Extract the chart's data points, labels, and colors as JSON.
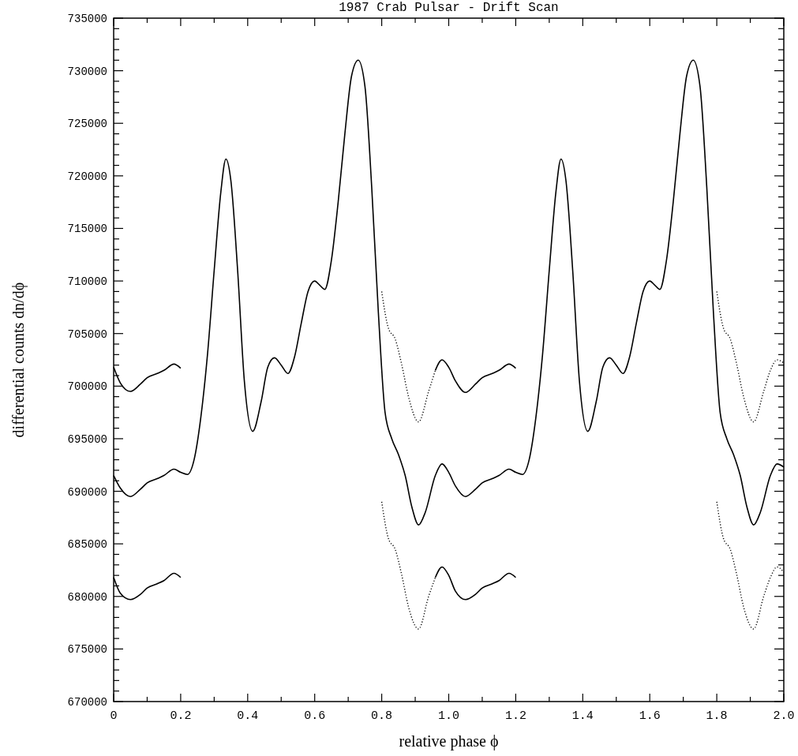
{
  "chart_data": {
    "type": "line",
    "title": "1987 Crab Pulsar - Drift Scan",
    "xlabel": "relative phase ϕ",
    "ylabel": "differential counts dn/dϕ",
    "xlim": [
      0,
      2
    ],
    "ylim": [
      670000,
      735000
    ],
    "xticks": [
      0,
      {
        "value": 0.1,
        "label": null
      },
      {
        "value": 0.2,
        "label": "0.2"
      },
      {
        "value": 0.3,
        "label": null
      },
      {
        "value": 0.4,
        "label": "0.4"
      },
      {
        "value": 0.5,
        "label": null
      },
      {
        "value": 0.6,
        "label": "0.6"
      },
      {
        "value": 0.7,
        "label": null
      },
      {
        "value": 0.8,
        "label": "0.8"
      },
      {
        "value": 0.9,
        "label": null
      },
      {
        "value": 1,
        "label": "1.0"
      },
      {
        "value": 1.1,
        "label": null
      },
      {
        "value": 1.2,
        "label": "1.2"
      },
      {
        "value": 1.3,
        "label": null
      },
      {
        "value": 1.4,
        "label": "1.4"
      },
      {
        "value": 1.5,
        "label": null
      },
      {
        "value": 1.6,
        "label": "1.6"
      },
      {
        "value": 1.7,
        "label": null
      },
      {
        "value": 1.8,
        "label": "1.8"
      },
      {
        "value": 1.9,
        "label": null
      },
      {
        "value": 2,
        "label": "2.0"
      }
    ],
    "yticks": [
      670000,
      {
        "value": 671000,
        "label": null
      },
      {
        "value": 672000,
        "label": null
      },
      {
        "value": 673000,
        "label": null
      },
      {
        "value": 674000,
        "label": null
      },
      675000,
      {
        "value": 676000,
        "label": null
      },
      {
        "value": 677000,
        "label": null
      },
      {
        "value": 678000,
        "label": null
      },
      {
        "value": 679000,
        "label": null
      },
      680000,
      {
        "value": 681000,
        "label": null
      },
      {
        "value": 682000,
        "label": null
      },
      {
        "value": 683000,
        "label": null
      },
      {
        "value": 684000,
        "label": null
      },
      685000,
      {
        "value": 686000,
        "label": null
      },
      {
        "value": 687000,
        "label": null
      },
      {
        "value": 688000,
        "label": null
      },
      {
        "value": 689000,
        "label": null
      },
      690000,
      {
        "value": 691000,
        "label": null
      },
      {
        "value": 692000,
        "label": null
      },
      {
        "value": 693000,
        "label": null
      },
      {
        "value": 694000,
        "label": null
      },
      695000,
      {
        "value": 696000,
        "label": null
      },
      {
        "value": 697000,
        "label": null
      },
      {
        "value": 698000,
        "label": null
      },
      {
        "value": 699000,
        "label": null
      },
      700000,
      {
        "value": 701000,
        "label": null
      },
      {
        "value": 702000,
        "label": null
      },
      {
        "value": 703000,
        "label": null
      },
      {
        "value": 704000,
        "label": null
      },
      705000,
      {
        "value": 706000,
        "label": null
      },
      {
        "value": 707000,
        "label": null
      },
      {
        "value": 708000,
        "label": null
      },
      {
        "value": 709000,
        "label": null
      },
      710000,
      {
        "value": 711000,
        "label": null
      },
      {
        "value": 712000,
        "label": null
      },
      {
        "value": 713000,
        "label": null
      },
      {
        "value": 714000,
        "label": null
      },
      715000,
      {
        "value": 716000,
        "label": null
      },
      {
        "value": 717000,
        "label": null
      },
      {
        "value": 718000,
        "label": null
      },
      {
        "value": 719000,
        "label": null
      },
      720000,
      {
        "value": 721000,
        "label": null
      },
      {
        "value": 722000,
        "label": null
      },
      {
        "value": 723000,
        "label": null
      },
      {
        "value": 724000,
        "label": null
      },
      725000,
      {
        "value": 726000,
        "label": null
      },
      {
        "value": 727000,
        "label": null
      },
      {
        "value": 728000,
        "label": null
      },
      {
        "value": 729000,
        "label": null
      },
      730000,
      {
        "value": 731000,
        "label": null
      },
      {
        "value": 732000,
        "label": null
      },
      {
        "value": 733000,
        "label": null
      },
      {
        "value": 734000,
        "label": null
      },
      735000
    ],
    "grid": false,
    "series": [
      {
        "color": "#000000",
        "line_style": "solid",
        "x": [
          0,
          0.02,
          0.05,
          0.08,
          0.1,
          0.13,
          0.15,
          0.18,
          0.2,
          0.22,
          0.24,
          0.26,
          0.28,
          0.3,
          0.32,
          0.335,
          0.35,
          0.37,
          0.39,
          0.415,
          0.44,
          0.46,
          0.48,
          0.5,
          0.52,
          0.54,
          0.56,
          0.58,
          0.6,
          0.615,
          0.63,
          0.65,
          0.67,
          0.69,
          0.71,
          0.73,
          0.75,
          0.77,
          0.79,
          0.81,
          0.83,
          0.85,
          0.87,
          0.89,
          0.91,
          0.93,
          0.96,
          0.98,
          1.0,
          1.02,
          1.05,
          1.08,
          1.1,
          1.13,
          1.15,
          1.18,
          1.2,
          1.22,
          1.24,
          1.26,
          1.28,
          1.3,
          1.32,
          1.335,
          1.35,
          1.37,
          1.39,
          1.415,
          1.44,
          1.46,
          1.48,
          1.5,
          1.52,
          1.54,
          1.56,
          1.58,
          1.6,
          1.615,
          1.63,
          1.65,
          1.67,
          1.69,
          1.71,
          1.73,
          1.75,
          1.77,
          1.79,
          1.81,
          1.83,
          1.85,
          1.87,
          1.89,
          1.91,
          1.93,
          1.96,
          1.98,
          2.0
        ],
        "values": [
          691500,
          690300,
          689500,
          690200,
          690800,
          691200,
          691500,
          692100,
          691800,
          691600,
          693000,
          697000,
          703000,
          711000,
          718500,
          721600,
          719500,
          711000,
          700500,
          695700,
          698500,
          701800,
          702700,
          702000,
          701200,
          702800,
          706000,
          709000,
          710000,
          709600,
          709200,
          712000,
          717500,
          724000,
          729500,
          731000,
          728500,
          719000,
          707000,
          697500,
          695000,
          693500,
          691500,
          688500,
          686800,
          688000,
          691500,
          692600,
          691800,
          690500,
          689500,
          690200,
          690800,
          691200,
          691500,
          692100,
          691800,
          691600,
          693000,
          697000,
          703000,
          711000,
          718500,
          721600,
          719500,
          711000,
          700500,
          695700,
          698500,
          701800,
          702700,
          702000,
          701200,
          702800,
          706000,
          709000,
          710000,
          709600,
          709200,
          712000,
          717500,
          724000,
          729500,
          731000,
          728500,
          719000,
          707000,
          697500,
          695000,
          693500,
          691500,
          688500,
          686800,
          688000,
          691500,
          692600,
          692300
        ]
      },
      {
        "color": "#000000",
        "line_style": "solid",
        "x": [
          0,
          0.02,
          0.05,
          0.08,
          0.1,
          0.13,
          0.15,
          0.18,
          0.2
        ],
        "values": [
          701800,
          700300,
          699500,
          700200,
          700800,
          701200,
          701500,
          702100,
          701700
        ]
      },
      {
        "color": "#000000",
        "line_style": "dotted",
        "x": [
          0.8,
          0.82,
          0.84,
          0.86,
          0.88,
          0.91,
          0.94,
          0.96
        ],
        "values": [
          709000,
          705500,
          704500,
          702000,
          699000,
          696600,
          699500,
          701500
        ]
      },
      {
        "color": "#000000",
        "line_style": "solid",
        "x": [
          0.96,
          0.98,
          1.0,
          1.02,
          1.05,
          1.08,
          1.1,
          1.13,
          1.15,
          1.18,
          1.2
        ],
        "values": [
          701500,
          702500,
          701800,
          700500,
          699400,
          700200,
          700800,
          701200,
          701500,
          702100,
          701700
        ]
      },
      {
        "color": "#000000",
        "line_style": "dotted",
        "x": [
          1.8,
          1.82,
          1.84,
          1.86,
          1.88,
          1.91,
          1.94,
          1.96,
          1.98,
          2.0
        ],
        "values": [
          709000,
          705500,
          704500,
          702000,
          699000,
          696600,
          699500,
          701500,
          702500,
          702200
        ]
      },
      {
        "color": "#000000",
        "line_style": "solid",
        "x": [
          0,
          0.02,
          0.05,
          0.08,
          0.1,
          0.13,
          0.15,
          0.18,
          0.2
        ],
        "values": [
          681800,
          680300,
          679700,
          680200,
          680800,
          681200,
          681500,
          682200,
          681800
        ]
      },
      {
        "color": "#000000",
        "line_style": "dotted",
        "x": [
          0.8,
          0.82,
          0.84,
          0.86,
          0.88,
          0.91,
          0.94,
          0.96
        ],
        "values": [
          689000,
          685500,
          684500,
          682000,
          679000,
          676900,
          680000,
          681800
        ]
      },
      {
        "color": "#000000",
        "line_style": "solid",
        "x": [
          0.96,
          0.98,
          1.0,
          1.02,
          1.05,
          1.08,
          1.1,
          1.13,
          1.15,
          1.18,
          1.2
        ],
        "values": [
          681800,
          682800,
          682000,
          680500,
          679700,
          680200,
          680800,
          681200,
          681500,
          682200,
          681800
        ]
      },
      {
        "color": "#000000",
        "line_style": "dotted",
        "x": [
          1.8,
          1.82,
          1.84,
          1.86,
          1.88,
          1.91,
          1.94,
          1.96,
          1.98,
          2.0
        ],
        "values": [
          689000,
          685500,
          684500,
          682000,
          679000,
          676900,
          680000,
          681800,
          682800,
          682300
        ]
      }
    ]
  }
}
